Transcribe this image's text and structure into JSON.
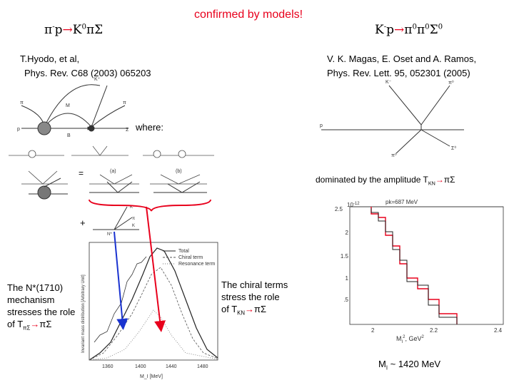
{
  "slide": {
    "headline": "confirmed by models!",
    "left_reaction": {
      "pre": "π",
      "sup1": "-",
      "mid": "p",
      "arrow": "→",
      "post": "K",
      "sup2": "0",
      "tail": "πΣ"
    },
    "right_reaction": {
      "pre": "K",
      "sup1": "-",
      "mid": "p",
      "arrow": "→",
      "p1": "π",
      "s1": "0",
      "p2": "π",
      "s2": "0",
      "p3": "Σ",
      "s3": "0"
    },
    "left_ref": {
      "line1": "T.Hyodo, et al,",
      "line2": "Phys. Rev. C68 (2003) 065203"
    },
    "right_ref": {
      "line1": "V. K. Magas, E. Oset and A. Ramos,",
      "line2": "Phys. Rev. Lett. 95, 052301 (2005)"
    },
    "where_label": "where:",
    "dominated": {
      "text": "dominated by the amplitude T",
      "sub": "K",
      "sub2": "N",
      "arrow": "→",
      "tail": "πΣ"
    },
    "nstar_note": {
      "l1": "The N*(1710)",
      "l2": "mechanism",
      "l3": "stresses the role",
      "l4": "of T",
      "sub": "πΣ",
      "arrow": "→",
      "tail": "πΣ"
    },
    "chiral_note": {
      "l1": "The chiral terms",
      "l2": "stress the role",
      "l3": "of  T",
      "sub": "K",
      "sub2": "N",
      "arrow": "→",
      "tail": "πΣ"
    },
    "mass_note": {
      "pre": "M",
      "sub": "I",
      "post": " ~ 1420 MeV"
    },
    "plus_sign": "+",
    "equals_sign": "="
  },
  "left_plot": {
    "legend": [
      "Total",
      "Chiral term",
      "Resonance term"
    ],
    "xlabel": "M_I [MeV]",
    "ylabel": "Invariant mass distribution [Arbitrary Unit]",
    "xticks": [
      "1360",
      "1400",
      "1440",
      "1480"
    ]
  },
  "right_plot": {
    "annotation": "pk=687 MeV",
    "yscale": "10",
    "yscale_exp": "-12",
    "yticks": [
      "2.5",
      "2",
      "1.5",
      "1",
      ".5"
    ],
    "xticks": [
      "2",
      "2.2",
      "2.4"
    ],
    "xlabel": "M",
    "xlabel_sub": "I",
    "xlabel_sup": "2",
    "xlabel_unit": ", GeV",
    "xlabel_unit_sup": "2"
  },
  "diagram_labels": {
    "top_left": [
      "K⁺",
      "M",
      "π",
      "π",
      "p",
      "B",
      "Σ"
    ],
    "top_right": [
      "K⁻",
      "π⁰",
      "p",
      "π⁰",
      "Σ⁰"
    ],
    "panel_a": "(a)",
    "panel_b": "(b)"
  },
  "colors": {
    "accent": "#e8001c",
    "arrow_blue": "#1a33d0",
    "arrow_red": "#e8001c",
    "hist_red": "#e8001c"
  }
}
